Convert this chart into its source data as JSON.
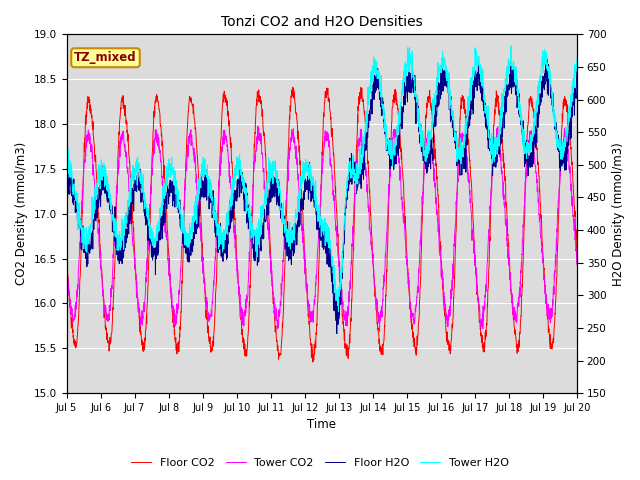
{
  "title": "Tonzi CO2 and H2O Densities",
  "xlabel": "Time",
  "ylabel_left": "CO2 Density (mmol/m3)",
  "ylabel_right": "H2O Density (mmol/m3)",
  "annotation": "TZ_mixed",
  "ylim_left": [
    15.0,
    19.0
  ],
  "ylim_right": [
    150,
    700
  ],
  "yticks_left": [
    15.0,
    15.5,
    16.0,
    16.5,
    17.0,
    17.5,
    18.0,
    18.5,
    19.0
  ],
  "yticks_right": [
    150,
    200,
    250,
    300,
    350,
    400,
    450,
    500,
    550,
    600,
    650,
    700
  ],
  "xtick_labels": [
    "Jul 5",
    "Jul 6",
    "Jul 7",
    "Jul 8",
    "Jul 9",
    "Jul 10",
    "Jul 11",
    "Jul 12",
    "Jul 13",
    "Jul 14",
    "Jul 15",
    "Jul 16",
    "Jul 17",
    "Jul 18",
    "Jul 19",
    "Jul 20"
  ],
  "colors": {
    "floor_co2": "#FF0000",
    "tower_co2": "#FF00FF",
    "floor_h2o": "#00008B",
    "tower_h2o": "#00FFFF"
  },
  "legend_labels": [
    "Floor CO2",
    "Tower CO2",
    "Floor H2O",
    "Tower H2O"
  ],
  "background_color": "#DCDCDC",
  "grid_color": "#FFFFFF",
  "annotation_bg": "#FFFF99",
  "annotation_border": "#CC8800",
  "n_days": 15,
  "pts_per_day": 144
}
